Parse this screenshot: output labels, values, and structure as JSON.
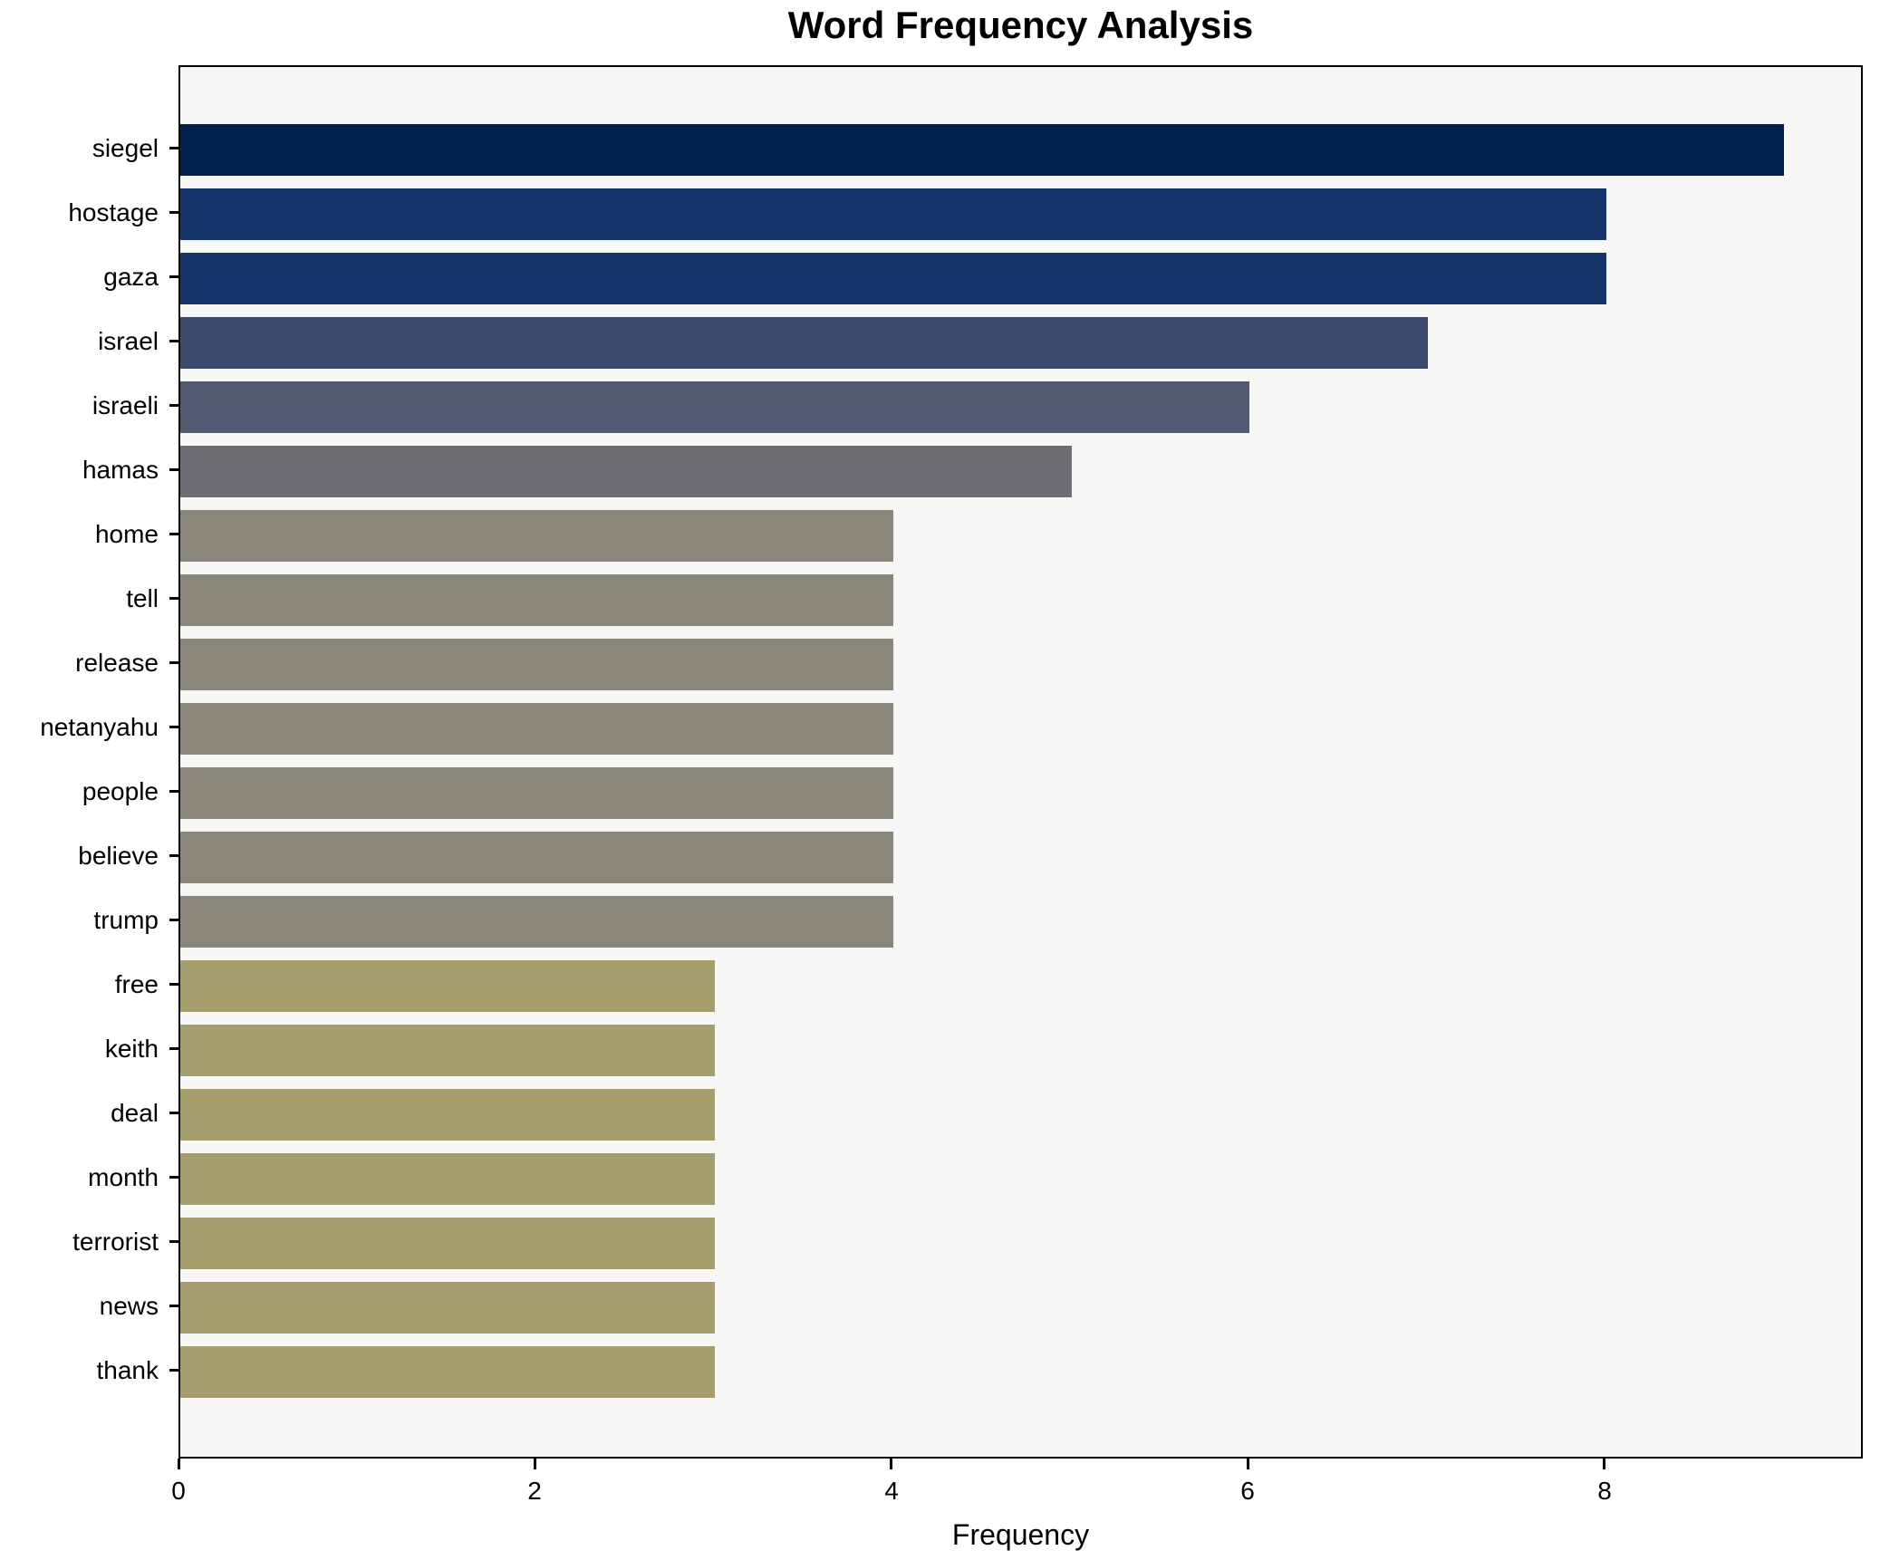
{
  "chart_data": {
    "type": "bar",
    "orientation": "horizontal",
    "title": "Word Frequency Analysis",
    "xlabel": "Frequency",
    "ylabel": "",
    "categories": [
      "siegel",
      "hostage",
      "gaza",
      "israel",
      "israeli",
      "hamas",
      "home",
      "tell",
      "release",
      "netanyahu",
      "people",
      "believe",
      "trump",
      "free",
      "keith",
      "deal",
      "month",
      "terrorist",
      "news",
      "thank"
    ],
    "values": [
      9,
      8,
      8,
      7,
      6,
      5,
      4,
      4,
      4,
      4,
      4,
      4,
      4,
      3,
      3,
      3,
      3,
      3,
      3,
      3
    ],
    "bar_colors": [
      "#01214D",
      "#16356B",
      "#16356B",
      "#3C4A6E",
      "#525A71",
      "#6C6E74",
      "#8A877A",
      "#8A877A",
      "#8A877A",
      "#8A877A",
      "#8A877A",
      "#8A877A",
      "#8A877A",
      "#A79E6E",
      "#A79E6E",
      "#A79E6E",
      "#A79E6E",
      "#A79E6E",
      "#A79E6E",
      "#A79E6E"
    ],
    "xticks": [
      0,
      2,
      4,
      6,
      8
    ],
    "xlim": [
      0,
      9.45
    ],
    "grid": false,
    "legend": null,
    "colors": {
      "plot_background": "#F7F7F6",
      "figure_background": "#FFFFFF",
      "spine": "#000000",
      "text": "#000000"
    }
  }
}
